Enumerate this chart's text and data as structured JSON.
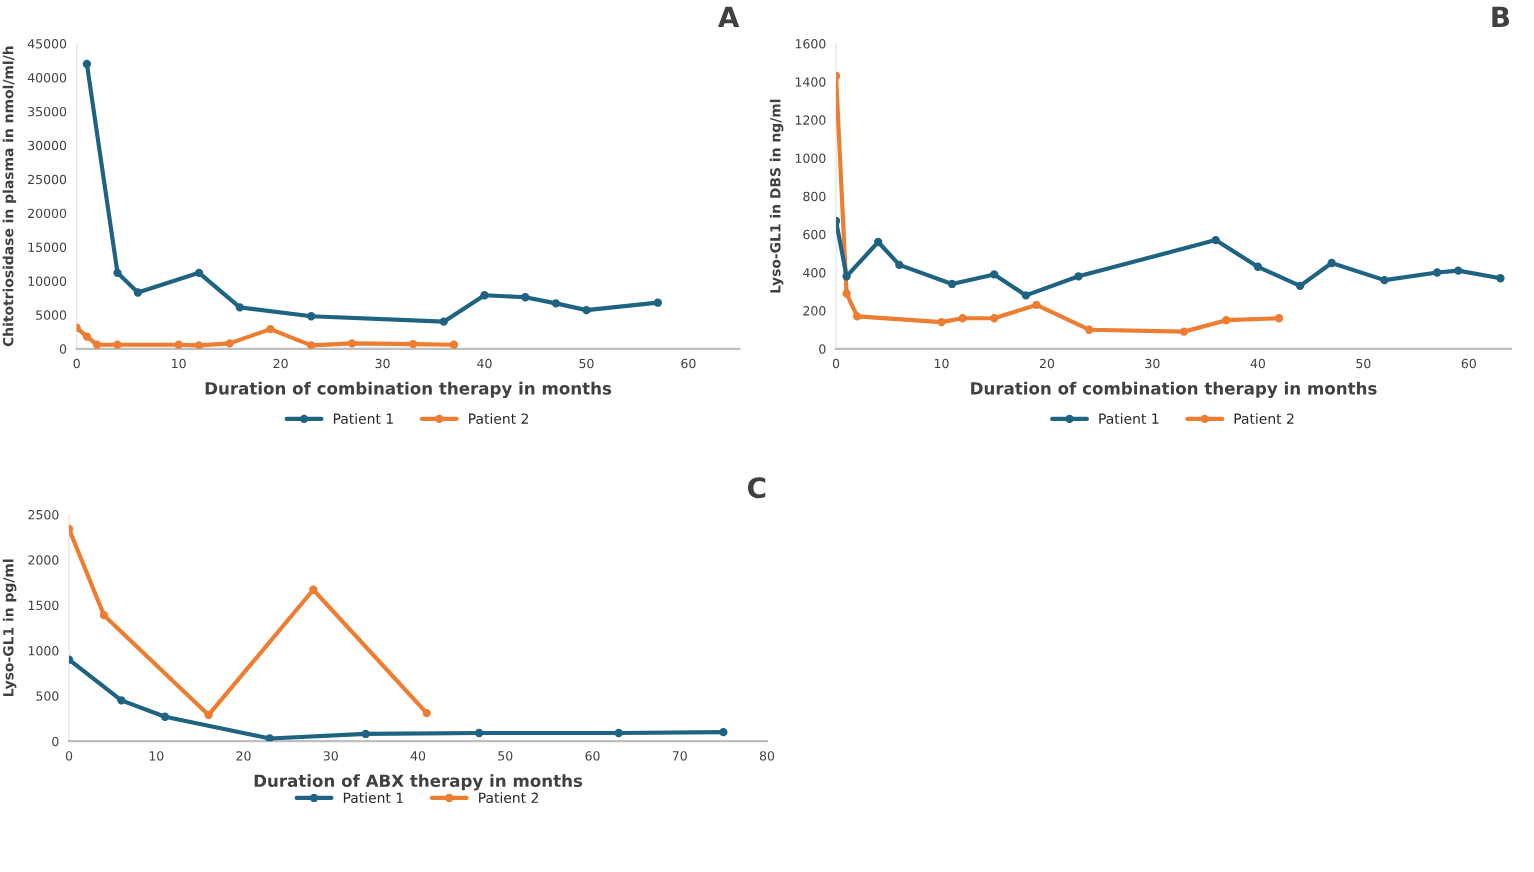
{
  "chart_data": [
    {
      "type": "line",
      "title": "A",
      "xlabel": "Duration of combination therapy in months",
      "ylabel": "Chitotriosidase in plasma in nmol/ml/h",
      "xlim": [
        0,
        65
      ],
      "xticks": [
        0,
        10,
        20,
        30,
        40,
        50,
        60
      ],
      "ylim": [
        0,
        45000
      ],
      "yticks": [
        0,
        5000,
        10000,
        15000,
        20000,
        25000,
        30000,
        35000,
        40000,
        45000
      ],
      "marker": "circle",
      "grid": false,
      "legend": "bottom",
      "series": [
        {
          "name": "Patient 1",
          "color": "#1f6382",
          "x": [
            1,
            4,
            6,
            12,
            16,
            23,
            36,
            40,
            44,
            47,
            50,
            57
          ],
          "values": [
            42000,
            11200,
            8300,
            11200,
            6100,
            4800,
            4000,
            7900,
            7600,
            6700,
            5700,
            6800
          ]
        },
        {
          "name": "Patient 2",
          "color": "#ed7d31",
          "x": [
            0,
            1,
            2,
            4,
            10,
            12,
            15,
            19,
            23,
            27,
            33,
            37
          ],
          "values": [
            3100,
            1800,
            600,
            600,
            600,
            500,
            800,
            2900,
            500,
            800,
            700,
            600
          ]
        }
      ]
    },
    {
      "type": "line",
      "title": "B",
      "xlabel": "Duration of combination therapy in months",
      "ylabel": "Lyso-GL1 in DBS in ng/ml",
      "xlim": [
        0,
        64
      ],
      "xticks": [
        0,
        10,
        20,
        30,
        40,
        50,
        60
      ],
      "ylim": [
        0,
        1600
      ],
      "yticks": [
        0,
        200,
        400,
        600,
        800,
        1000,
        1200,
        1400,
        1600
      ],
      "marker": "circle",
      "grid": false,
      "legend": "bottom",
      "series": [
        {
          "name": "Patient 1",
          "color": "#1f6382",
          "x": [
            0,
            1,
            4,
            6,
            11,
            15,
            18,
            23,
            36,
            40,
            44,
            47,
            52,
            57,
            59,
            63
          ],
          "values": [
            670,
            380,
            560,
            440,
            340,
            390,
            280,
            380,
            570,
            430,
            330,
            450,
            360,
            400,
            410,
            370
          ]
        },
        {
          "name": "Patient 2",
          "color": "#ed7d31",
          "x": [
            0,
            1,
            2,
            10,
            12,
            15,
            19,
            24,
            33,
            37,
            42
          ],
          "values": [
            1430,
            290,
            170,
            140,
            160,
            160,
            230,
            100,
            90,
            150,
            160
          ]
        }
      ]
    },
    {
      "type": "line",
      "title": "C",
      "xlabel": "Duration of ABX therapy in months",
      "ylabel": "Lyso-GL1 in pg/ml",
      "xlim": [
        0,
        80
      ],
      "xticks": [
        0,
        10,
        20,
        30,
        40,
        50,
        60,
        70,
        80
      ],
      "ylim": [
        0,
        2500
      ],
      "yticks": [
        0,
        500,
        1000,
        1500,
        2000,
        2500
      ],
      "marker": "circle",
      "grid": false,
      "legend": "bottom",
      "series": [
        {
          "name": "Patient 1",
          "color": "#1f6382",
          "x": [
            0,
            6,
            11,
            23,
            34,
            47,
            63,
            75
          ],
          "values": [
            900,
            450,
            270,
            30,
            80,
            90,
            90,
            100
          ]
        },
        {
          "name": "Patient 2",
          "color": "#ed7d31",
          "x": [
            0,
            4,
            16,
            28,
            41
          ],
          "values": [
            2340,
            1390,
            290,
            1670,
            310
          ]
        }
      ]
    }
  ]
}
